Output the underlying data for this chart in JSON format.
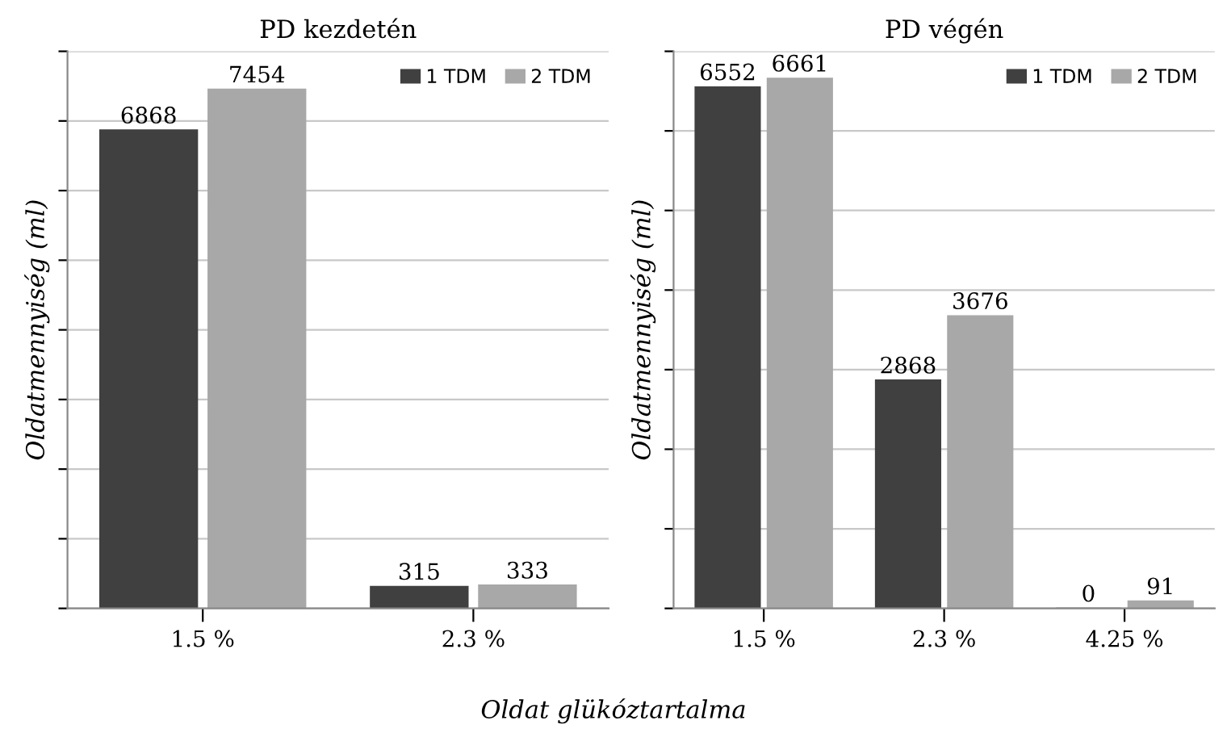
{
  "chart_data": [
    {
      "type": "bar",
      "title": "PD kezdetén",
      "ylabel": "Oldatmennyiség (ml)",
      "categories": [
        "1.5 %",
        "2.3 %"
      ],
      "series": [
        {
          "name": "1 TDM",
          "color": "#404040",
          "values": [
            6868,
            315
          ]
        },
        {
          "name": "2 TDM",
          "color": "#a8a8a8",
          "values": [
            7454,
            333
          ]
        }
      ],
      "ylim": [
        0,
        8000
      ],
      "yticks": [
        {
          "value": 0,
          "label": null
        },
        {
          "value": 1000,
          "label": null
        },
        {
          "value": 2000,
          "label": null
        },
        {
          "value": 3000,
          "label": null
        },
        {
          "value": 4000,
          "label": null
        },
        {
          "value": 5000,
          "label": null
        },
        {
          "value": 6000,
          "label": null
        },
        {
          "value": 7000,
          "label": null
        },
        {
          "value": 8000,
          "label": null
        }
      ],
      "tick_labels": "x",
      "grid": "y",
      "legend": "top right",
      "data_labels": true,
      "annotations": [
        "Oldat glükóztartalma"
      ]
    },
    {
      "type": "bar",
      "title": "PD végén",
      "ylabel": "Oldatmennyiség (ml)",
      "categories": [
        "1.5 %",
        "2.3 %",
        "4.25 %"
      ],
      "series": [
        {
          "name": "1 TDM",
          "color": "#404040",
          "values": [
            6552,
            2868,
            0
          ]
        },
        {
          "name": "2 TDM",
          "color": "#a8a8a8",
          "values": [
            6661,
            3676,
            91
          ]
        }
      ],
      "ylim": [
        0,
        7000
      ],
      "yticks": [
        {
          "value": 0,
          "label": null
        },
        {
          "value": 1000,
          "label": null
        },
        {
          "value": 2000,
          "label": null
        },
        {
          "value": 3000,
          "label": null
        },
        {
          "value": 4000,
          "label": null
        },
        {
          "value": 5000,
          "label": null
        },
        {
          "value": 6000,
          "label": null
        },
        {
          "value": 7000,
          "label": null
        }
      ],
      "tick_labels": "x",
      "grid": "y",
      "legend": "top right",
      "data_labels": true
    }
  ]
}
